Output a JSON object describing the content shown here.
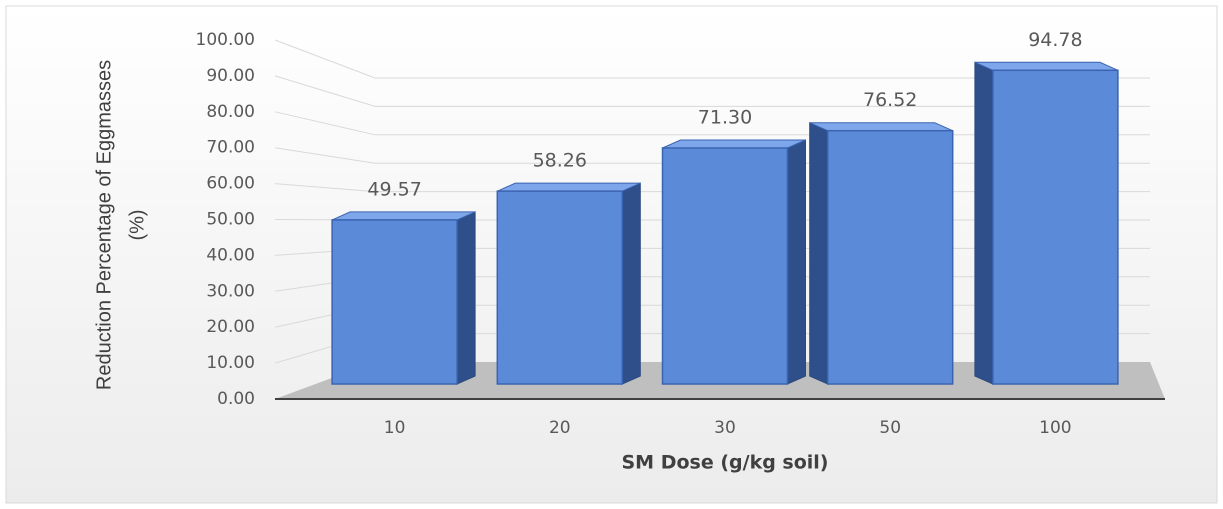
{
  "chart_data": {
    "type": "bar3d",
    "ylabel": [
      "Reduction Percentage of Eggmasses",
      "(%)"
    ],
    "xlabel": "SM Dose (g/kg soil)",
    "categories": [
      "10",
      "20",
      "30",
      "50",
      "100"
    ],
    "values": [
      49.57,
      58.26,
      71.3,
      76.52,
      94.78
    ],
    "value_labels": [
      "49.57",
      "58.26",
      "71.30",
      "76.52",
      "94.78"
    ],
    "color": "#5b8ad8",
    "ylim": [
      0,
      100
    ],
    "yticks": [
      {
        "value": 0,
        "label": "0.00"
      },
      {
        "value": 10,
        "label": "10.00"
      },
      {
        "value": 20,
        "label": "20.00"
      },
      {
        "value": 30,
        "label": "30.00"
      },
      {
        "value": 40,
        "label": "40.00"
      },
      {
        "value": 50,
        "label": "50.00"
      },
      {
        "value": 60,
        "label": "60.00"
      },
      {
        "value": 70,
        "label": "70.00"
      },
      {
        "value": 80,
        "label": "80.00"
      },
      {
        "value": 90,
        "label": "90.00"
      },
      {
        "value": 100,
        "label": "100.00"
      }
    ],
    "grid": true
  }
}
